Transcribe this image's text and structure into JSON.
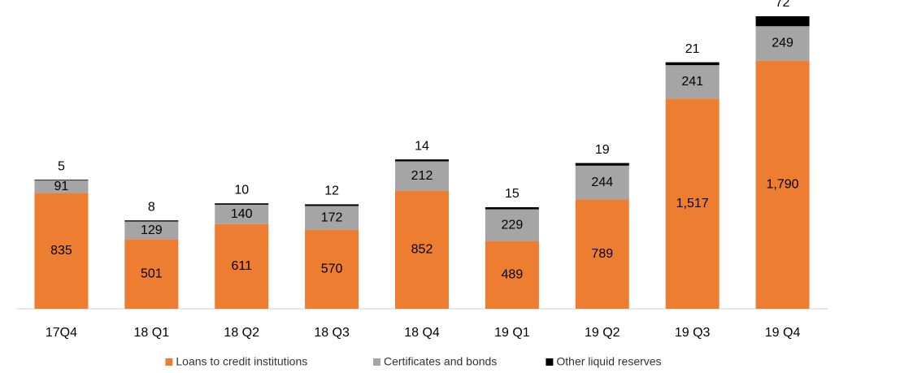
{
  "chart_data": {
    "type": "stacked_bar",
    "categories": [
      "17Q4",
      "18 Q1",
      "18 Q2",
      "18 Q3",
      "18 Q4",
      "19 Q1",
      "19 Q2",
      "19 Q3",
      "19 Q4"
    ],
    "series": [
      {
        "name": "Loans to credit institutions",
        "color": "#ED7D31",
        "values": [
          835,
          501,
          611,
          570,
          852,
          489,
          789,
          1517,
          1790
        ],
        "value_labels": [
          "835",
          "501",
          "611",
          "570",
          "852",
          "489",
          "789",
          "1,517",
          "1,790"
        ]
      },
      {
        "name": "Certificates and bonds",
        "color": "#A5A5A5",
        "values": [
          91,
          129,
          140,
          172,
          212,
          229,
          244,
          241,
          249
        ]
      },
      {
        "name": "Other liquid reserves",
        "color": "#000000",
        "values": [
          5,
          8,
          10,
          12,
          14,
          15,
          19,
          21,
          72
        ]
      }
    ]
  }
}
